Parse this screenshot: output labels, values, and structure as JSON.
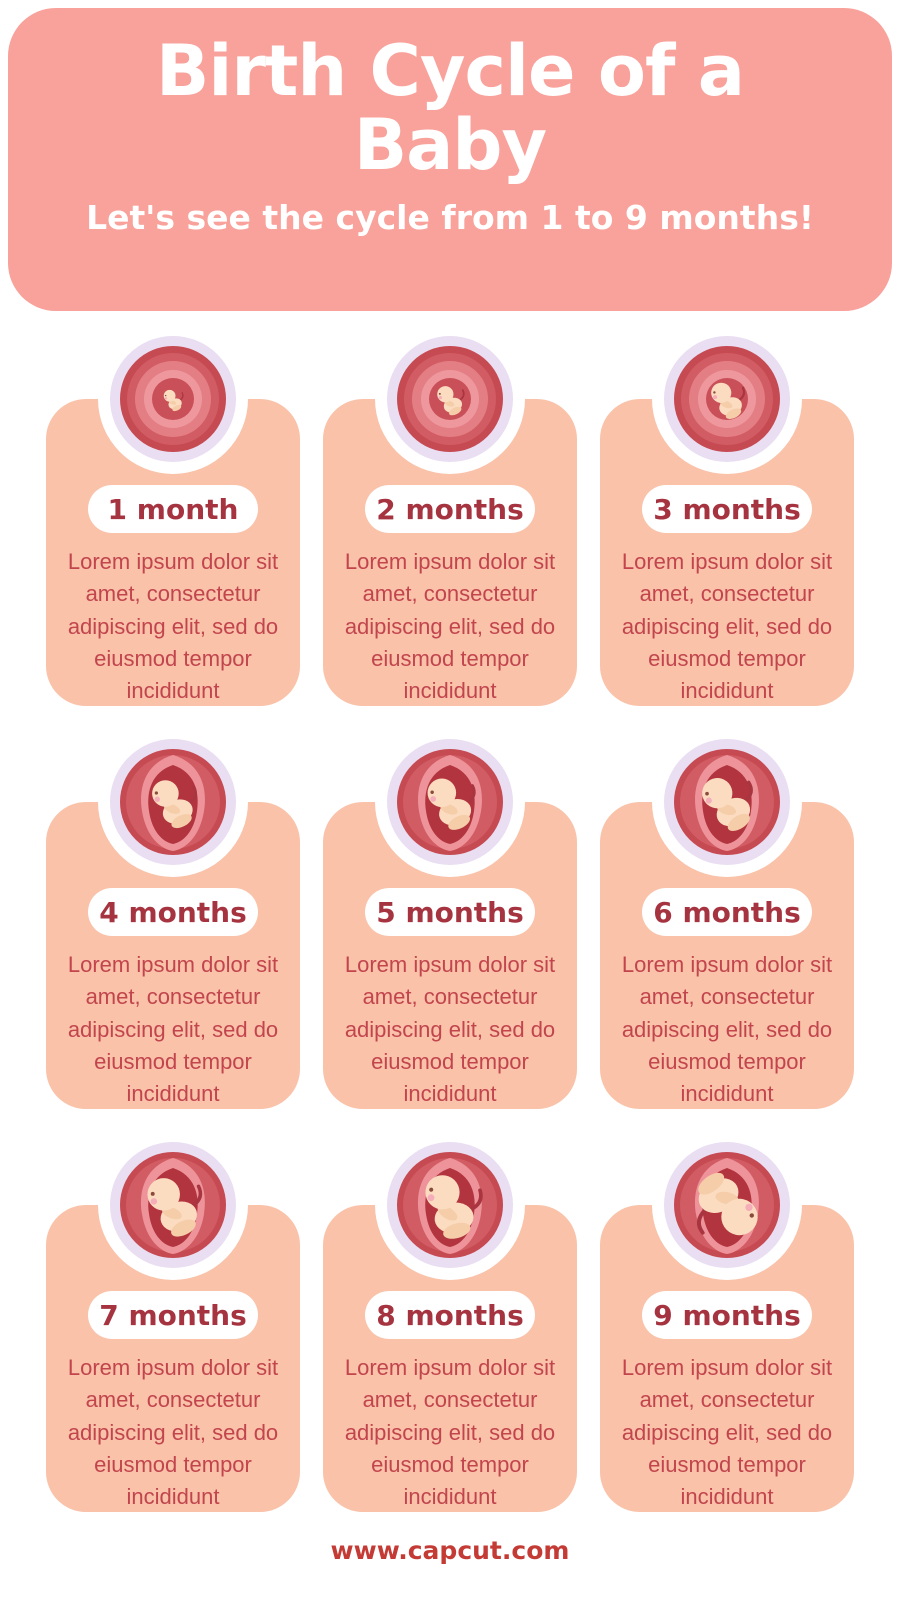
{
  "header": {
    "title": "Birth Cycle of a Baby",
    "subtitle": "Let's see the cycle from 1 to 9 months!",
    "bg_color": "#f9a19b",
    "text_color": "#ffffff"
  },
  "months": [
    {
      "label": "1 month",
      "icon": "fetus-in-womb-icon",
      "description": "Lorem ipsum dolor sit amet, consectetur adipiscing elit, sed do eiusmod tempor incididunt"
    },
    {
      "label": "2 months",
      "icon": "fetus-in-womb-icon",
      "description": "Lorem ipsum dolor sit amet, consectetur adipiscing elit, sed do eiusmod tempor incididunt"
    },
    {
      "label": "3 months",
      "icon": "fetus-in-womb-icon",
      "description": "Lorem ipsum dolor sit amet, consectetur adipiscing elit, sed do eiusmod tempor incididunt"
    },
    {
      "label": "4 months",
      "icon": "fetus-in-womb-icon",
      "description": "Lorem ipsum dolor sit amet, consectetur adipiscing elit, sed do eiusmod tempor incididunt"
    },
    {
      "label": "5 months",
      "icon": "fetus-in-womb-icon",
      "description": "Lorem ipsum dolor sit amet, consectetur adipiscing elit, sed do eiusmod tempor incididunt"
    },
    {
      "label": "6 months",
      "icon": "fetus-in-womb-icon",
      "description": "Lorem ipsum dolor sit amet, consectetur adipiscing elit, sed do eiusmod tempor incididunt"
    },
    {
      "label": "7 months",
      "icon": "fetus-in-womb-icon",
      "description": "Lorem ipsum dolor sit amet, consectetur adipiscing elit, sed do eiusmod tempor incididunt"
    },
    {
      "label": "8 months",
      "icon": "fetus-in-womb-icon",
      "description": "Lorem ipsum dolor sit amet, consectetur adipiscing elit, sed do eiusmod tempor incididunt"
    },
    {
      "label": "9 months",
      "icon": "fetus-in-womb-icon",
      "description": "Lorem ipsum dolor sit amet, consectetur adipiscing elit, sed do eiusmod tempor incididunt"
    }
  ],
  "footer": {
    "url": "www.capcut.com"
  },
  "colors": {
    "header_bg": "#f9a19b",
    "card_bg": "#f9c2a9",
    "pill_bg": "#ffffff",
    "pill_text": "#a63440",
    "body_text": "#c2454e",
    "footer_text": "#c43b35",
    "womb_ring": "#e9def2",
    "womb_outer_red": "#c64a52",
    "womb_swirl_1": "#d25c64",
    "womb_swirl_2": "#e47e85",
    "womb_swirl_3": "#ee989e",
    "womb_swirl_4": "#c94f59",
    "womb_sac_light": "#ee939a",
    "womb_sac_dark": "#b2343f",
    "fetus_skin": "#fbdcc0",
    "fetus_skin_shade": "#f5cda9",
    "fetus_cheek": "#f5adb9"
  }
}
